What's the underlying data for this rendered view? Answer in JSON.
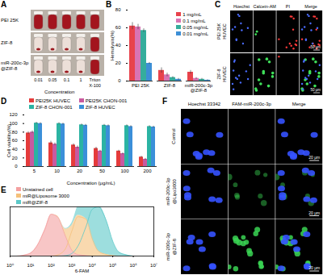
{
  "chart_data": [
    {
      "type": "bar",
      "title": "B",
      "y_label": "Hemolysis(%)",
      "categories": [
        "PEI 25K",
        "ZIF-8",
        "miR-200c-3p@ZIF-8"
      ],
      "series": [
        {
          "name": "1 mg/mL",
          "color": "#e8434c",
          "values": [
            62,
            12,
            10
          ],
          "errors": [
            4,
            3,
            2
          ]
        },
        {
          "name": "0.1 mg/mL",
          "color": "#d874b4",
          "values": [
            61,
            7,
            3
          ],
          "errors": [
            3,
            2,
            1
          ]
        },
        {
          "name": "0.05 mg/mL",
          "color": "#35ad9c",
          "values": [
            57,
            4,
            2
          ],
          "errors": [
            2,
            1,
            1
          ]
        },
        {
          "name": "0.01 mg/mL",
          "color": "#3d8fd6",
          "values": [
            20,
            2,
            1
          ],
          "errors": [
            1,
            1,
            0.5
          ]
        }
      ],
      "ylim": [
        0,
        80
      ],
      "yticks": [
        0,
        20,
        40,
        60,
        80
      ],
      "legend": "top-right"
    },
    {
      "type": "bar",
      "title": "D",
      "x_label": "Concentration (μg/mL)",
      "y_label": "Cell viability(%)",
      "categories": [
        5,
        10,
        20,
        50,
        100,
        200
      ],
      "series": [
        {
          "name": "PEI25K HUVEC",
          "color": "#e53b3b",
          "values": [
            78,
            55,
            50,
            42,
            36,
            22
          ],
          "errors": [
            3,
            4,
            3,
            3,
            2,
            2
          ]
        },
        {
          "name": "PEI25K CHON-001",
          "color": "#c85aa0",
          "values": [
            80,
            52,
            45,
            36,
            30,
            17
          ],
          "errors": [
            3,
            3,
            3,
            2,
            2,
            2
          ]
        },
        {
          "name": "ZIF-8 CHON-001",
          "color": "#2bb3a3",
          "values": [
            101,
            100,
            97,
            96,
            95,
            93
          ],
          "errors": [
            2,
            2,
            2,
            2,
            2,
            2
          ]
        },
        {
          "name": "ZIF-8 HUVEC",
          "color": "#3b8fd9",
          "values": [
            100,
            99,
            96,
            95,
            93,
            92
          ],
          "errors": [
            2,
            2,
            2,
            2,
            2,
            2
          ]
        }
      ],
      "ylim": [
        0,
        120
      ],
      "yticks": [
        0,
        20,
        40,
        60,
        80,
        100,
        120
      ],
      "legend": "top"
    },
    {
      "type": "area",
      "title": "E",
      "x_label": "6-FAM",
      "log": "x",
      "x": [
        1,
        2,
        5,
        10,
        20,
        50,
        100,
        200,
        500,
        1000,
        2000,
        5000,
        10000,
        20000,
        50000,
        100000,
        200000,
        500000,
        1000000,
        10000000
      ],
      "series": [
        {
          "name": "Unstained cell",
          "color": "#f4a0a0",
          "values": [
            0,
            0,
            2,
            6,
            20,
            55,
            85,
            80,
            40,
            12,
            3,
            1,
            0,
            0,
            0,
            0,
            0,
            0,
            0,
            0
          ]
        },
        {
          "name": "miR@Liposome 3000",
          "color": "#f5c07a",
          "values": [
            0,
            0,
            0,
            0,
            0,
            0,
            0,
            2,
            15,
            50,
            80,
            75,
            35,
            10,
            3,
            1,
            0,
            0,
            0,
            0
          ]
        },
        {
          "name": "miR@ZIF-8",
          "color": "#5cc8c8",
          "values": [
            0,
            0,
            0,
            0,
            0,
            0,
            0,
            0,
            1,
            5,
            20,
            60,
            95,
            100,
            70,
            30,
            8,
            2,
            0,
            0
          ]
        }
      ],
      "xlim": [
        1,
        10000000
      ],
      "xticks": [
        {
          "value": 1,
          "label": "10⁰"
        },
        {
          "value": 10,
          "label": "10¹"
        },
        {
          "value": 100,
          "label": "10²"
        },
        {
          "value": 1000,
          "label": "10³"
        },
        {
          "value": 10000,
          "label": "10⁴"
        },
        {
          "value": 100000,
          "label": "10⁵"
        },
        {
          "value": 1000000,
          "label": "10⁶"
        },
        {
          "value": 10000000,
          "label": "10⁷"
        }
      ],
      "ylim": [
        0,
        100
      ],
      "tick_labels": "x",
      "legend": "top"
    }
  ],
  "image_panels": [
    {
      "label": "A",
      "rows": [
        "PEI 25K",
        "ZIF-8",
        "miR-200c-3p@ZIF-8"
      ],
      "columns": [
        "0.01",
        "0.05",
        "0.1",
        "1",
        "Triton X-100"
      ],
      "x_label": "Concentration"
    },
    {
      "label": "C",
      "columns": [
        "Hoechst",
        "Calcein-AM",
        "PI",
        "Merge"
      ],
      "rows": [
        "PEI 25K HUVEC",
        "ZIF-8 HUVEC"
      ],
      "scale_bar": "50 μm"
    },
    {
      "label": "F",
      "columns": [
        "Hoechst 33342",
        "FAM-miR-200c-3p",
        "Merge"
      ],
      "rows": [
        "Control",
        "miR-200c-3p@Lipo3000",
        "miR-200c-3p@ZIF-8"
      ],
      "scale_bar": "20 μm"
    }
  ]
}
